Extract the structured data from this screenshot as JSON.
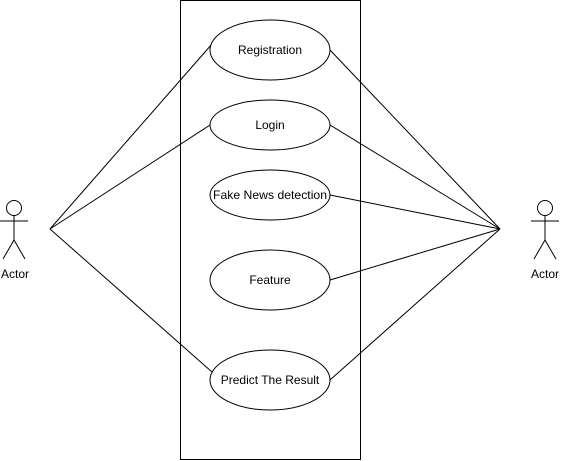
{
  "actors": [
    {
      "label": "Actor"
    },
    {
      "label": "Actor"
    }
  ],
  "use_cases": [
    {
      "label": "Registration"
    },
    {
      "label": "Login"
    },
    {
      "label": "Fake News detection"
    },
    {
      "label": "Feature"
    },
    {
      "label": "Predict The Result"
    }
  ],
  "colors": {
    "stroke": "#000000",
    "fill": "#ffffff",
    "background": "#ffffff"
  }
}
